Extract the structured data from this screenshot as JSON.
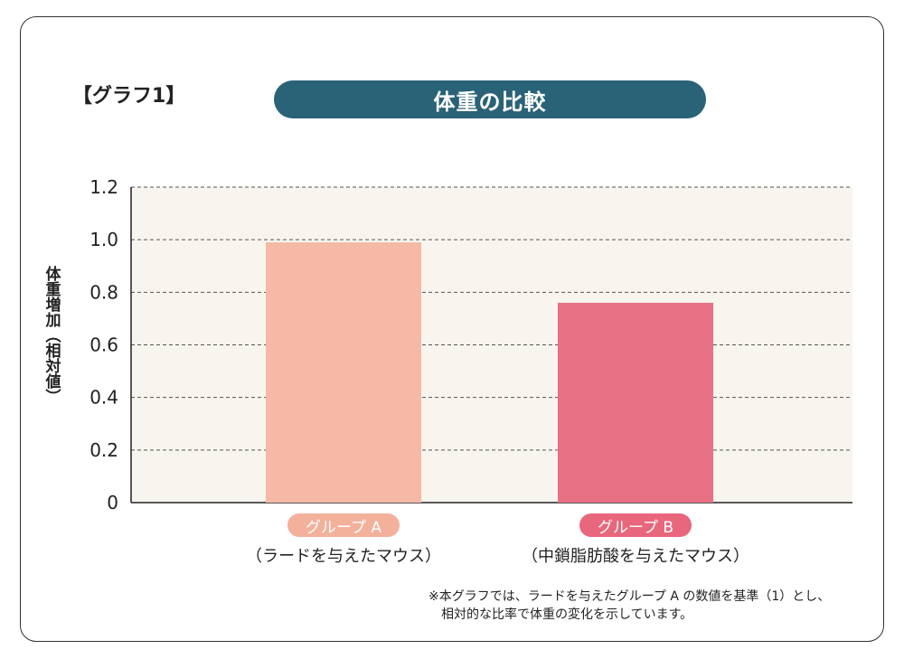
{
  "graph_label": "【グラフ1】",
  "title": "体重の比較",
  "footnote": {
    "line1": "※本グラフでは、ラードを与えたグループ A の数値を基準（1）とし、",
    "line2": "相対的な比率で体重の変化を示しています。"
  },
  "chart_data": {
    "type": "bar",
    "title": "体重の比較",
    "ylabel": "体重増加（相対値）",
    "xlabel": "",
    "ylim": [
      0,
      1.2
    ],
    "yticks": [
      "0",
      "0.2",
      "0.4",
      "0.6",
      "0.8",
      "1.0",
      "1.2"
    ],
    "grid": true,
    "categories": [
      {
        "name": "グループ A",
        "sub": "（ラードを与えたマウス）",
        "value": 0.99,
        "color": "#f5b9a5",
        "label_color": "#f3b19c"
      },
      {
        "name": "グループ B",
        "sub": "（中鎖脂肪酸を与えたマウス）",
        "value": 0.76,
        "color": "#e87085",
        "label_color": "#e8677d"
      }
    ],
    "plot_bg": "#f8f5ee"
  }
}
